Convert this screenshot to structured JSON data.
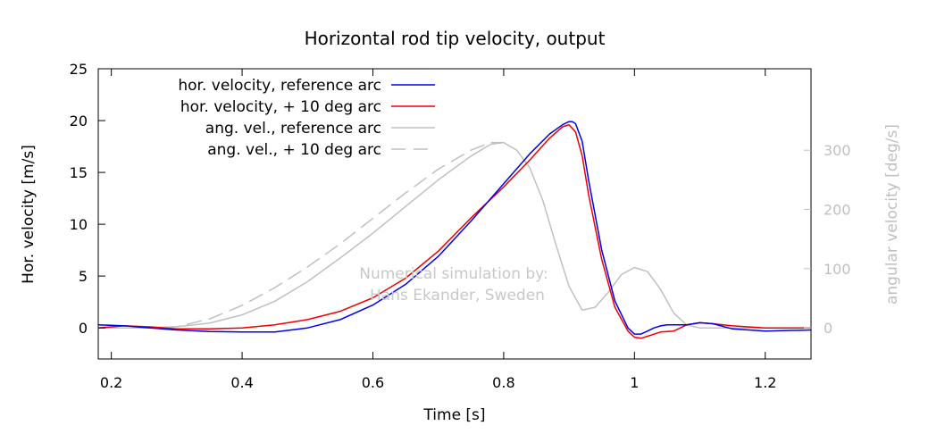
{
  "chart_data": {
    "type": "line",
    "title": "Horizontal rod tip velocity, output",
    "xlabel": "Time [s]",
    "ylabel": "Hor. velocity [m/s]",
    "y2label": "angular velocity [deg/s]",
    "xlim": [
      0.18,
      1.27
    ],
    "ylim": [
      -3,
      25
    ],
    "y2lim": [
      -52.5,
      437.5
    ],
    "xticks": [
      0.2,
      0.4,
      0.6,
      0.8,
      1.0,
      1.2
    ],
    "xtick_labels": [
      "0.2",
      "0.4",
      "0.6",
      "0.8",
      "1",
      "1.2"
    ],
    "yticks": [
      0,
      5,
      10,
      15,
      20,
      25
    ],
    "y2ticks": [
      0,
      100,
      200,
      300
    ],
    "grid": false,
    "legend_position": "top-left",
    "watermark_lines": [
      "Numerical simulation by:",
      "Hans Ekander, Sweden"
    ],
    "series": [
      {
        "name": "hor. velocity, reference arc",
        "axis": "left",
        "color": "#0000ee",
        "dash": "solid",
        "x": [
          0.18,
          0.22,
          0.26,
          0.3,
          0.35,
          0.4,
          0.45,
          0.5,
          0.55,
          0.6,
          0.65,
          0.7,
          0.75,
          0.8,
          0.84,
          0.87,
          0.89,
          0.9,
          0.905,
          0.91,
          0.92,
          0.93,
          0.95,
          0.97,
          0.99,
          1.0,
          1.01,
          1.02,
          1.03,
          1.04,
          1.05,
          1.08,
          1.1,
          1.12,
          1.15,
          1.2,
          1.27
        ],
        "values": [
          0.3,
          0.2,
          0.0,
          -0.2,
          -0.35,
          -0.4,
          -0.4,
          0.0,
          0.8,
          2.2,
          4.2,
          6.9,
          10.3,
          13.9,
          16.8,
          18.7,
          19.6,
          19.9,
          19.9,
          19.7,
          18.0,
          14.2,
          7.5,
          2.6,
          0.0,
          -0.6,
          -0.6,
          -0.3,
          0.0,
          0.2,
          0.3,
          0.3,
          0.5,
          0.4,
          -0.1,
          -0.3,
          -0.2
        ]
      },
      {
        "name": "hor. velocity, + 10 deg arc",
        "axis": "left",
        "color": "#ee0000",
        "dash": "solid",
        "x": [
          0.18,
          0.22,
          0.26,
          0.3,
          0.35,
          0.4,
          0.45,
          0.5,
          0.55,
          0.6,
          0.65,
          0.7,
          0.75,
          0.8,
          0.84,
          0.87,
          0.89,
          0.9,
          0.91,
          0.92,
          0.93,
          0.95,
          0.97,
          0.99,
          1.0,
          1.01,
          1.02,
          1.04,
          1.06,
          1.08,
          1.1,
          1.12,
          1.15,
          1.2,
          1.27
        ],
        "values": [
          0.0,
          0.2,
          0.1,
          -0.1,
          -0.1,
          0.0,
          0.3,
          0.8,
          1.6,
          2.9,
          4.8,
          7.4,
          10.6,
          13.6,
          16.2,
          18.3,
          19.4,
          19.6,
          18.9,
          16.6,
          12.8,
          6.6,
          2.0,
          -0.3,
          -0.9,
          -1.0,
          -0.8,
          -0.4,
          -0.3,
          0.3,
          0.5,
          0.4,
          0.2,
          0.0,
          0.0
        ]
      },
      {
        "name": "ang. vel., reference arc",
        "axis": "right",
        "color": "#c0c0c0",
        "dash": "solid",
        "x": [
          0.18,
          0.25,
          0.3,
          0.35,
          0.4,
          0.45,
          0.5,
          0.55,
          0.6,
          0.65,
          0.7,
          0.75,
          0.78,
          0.8,
          0.82,
          0.84,
          0.86,
          0.88,
          0.9,
          0.92,
          0.94,
          0.96,
          0.98,
          1.0,
          1.02,
          1.04,
          1.06,
          1.08,
          1.1,
          1.15,
          1.2,
          1.27
        ],
        "values": [
          0,
          0,
          2,
          8,
          22,
          45,
          78,
          118,
          160,
          205,
          250,
          290,
          310,
          313,
          300,
          270,
          215,
          140,
          70,
          30,
          35,
          60,
          90,
          102,
          95,
          65,
          25,
          5,
          0,
          0,
          0,
          0
        ]
      },
      {
        "name": "ang. vel., + 10 deg arc",
        "axis": "right",
        "color": "#c0c0c0",
        "dash": "dashed",
        "x": [
          0.18,
          0.25,
          0.3,
          0.35,
          0.4,
          0.45,
          0.5,
          0.55,
          0.6,
          0.65,
          0.7,
          0.75,
          0.78,
          0.8
        ],
        "values": [
          0,
          0,
          2,
          15,
          38,
          68,
          103,
          142,
          185,
          228,
          268,
          300,
          313,
          313
        ]
      }
    ]
  }
}
